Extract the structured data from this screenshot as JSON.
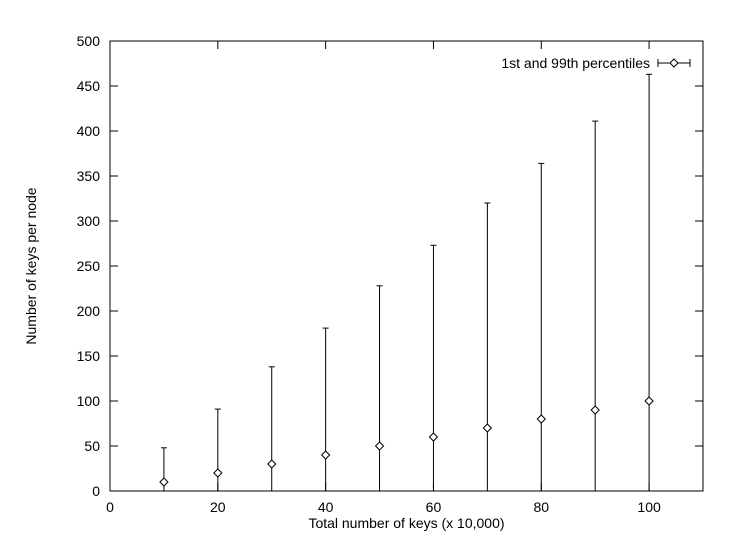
{
  "chart_data": {
    "type": "scatter",
    "title": "",
    "xlabel": "Total number of keys (x 10,000)",
    "ylabel": "Number of keys per node",
    "xlim": [
      0,
      110
    ],
    "ylim": [
      0,
      500
    ],
    "x_ticks": [
      0,
      20,
      40,
      60,
      80,
      100
    ],
    "y_ticks": [
      0,
      50,
      100,
      150,
      200,
      250,
      300,
      350,
      400,
      450,
      500
    ],
    "grid": false,
    "legend_position": "top-right",
    "series": [
      {
        "name": "1st and 99th percentiles",
        "marker": "diamond",
        "error_bars": true,
        "x": [
          10,
          20,
          30,
          40,
          50,
          60,
          70,
          80,
          90,
          100
        ],
        "y": [
          10,
          20,
          30,
          40,
          50,
          60,
          70,
          80,
          90,
          100
        ],
        "y_low": [
          0,
          0,
          0,
          0,
          0,
          0,
          0,
          0,
          0,
          0
        ],
        "y_high": [
          48,
          91,
          138,
          181,
          228,
          273,
          320,
          364,
          411,
          463
        ]
      }
    ]
  }
}
